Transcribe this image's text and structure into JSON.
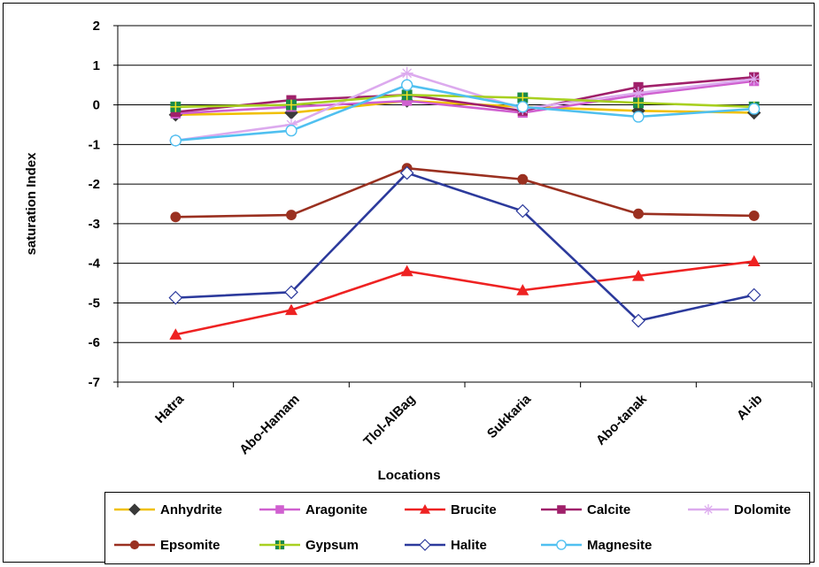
{
  "chart_data": {
    "type": "line",
    "title": "",
    "xlabel": "Locations",
    "ylabel": "saturation Index",
    "ylim": [
      -7,
      2
    ],
    "yticks": [
      "2",
      "1",
      "0",
      "-1",
      "-2",
      "-3",
      "-4",
      "-5",
      "-6",
      "-7"
    ],
    "grid": "horizontal",
    "legend_position": "bottom",
    "categories": [
      "Hatra",
      "Abo-Hamam",
      "Tlol-AlBag",
      "Sukkaria",
      "Abo-tanak",
      "Al-ib"
    ],
    "series": [
      {
        "name": "Anhydrite",
        "color": "#f0c000",
        "marker": "diamond-filled",
        "marker_color": "#3a3a3a",
        "values": [
          -0.25,
          -0.2,
          0.1,
          -0.05,
          -0.15,
          -0.2
        ]
      },
      {
        "name": "Aragonite",
        "color": "#d060d0",
        "marker": "square-filled",
        "values": [
          -0.22,
          -0.05,
          0.1,
          -0.2,
          0.25,
          0.6
        ]
      },
      {
        "name": "Brucite",
        "color": "#ee2222",
        "marker": "triangle-filled",
        "values": [
          -5.8,
          -5.18,
          -4.2,
          -4.68,
          -4.32,
          -3.95
        ]
      },
      {
        "name": "Calcite",
        "color": "#a0206a",
        "marker": "square-filled",
        "values": [
          -0.18,
          0.12,
          0.25,
          -0.15,
          0.45,
          0.7
        ]
      },
      {
        "name": "Dolomite",
        "color": "#dcaaee",
        "marker": "star",
        "values": [
          -0.9,
          -0.5,
          0.8,
          -0.1,
          0.3,
          0.65
        ]
      },
      {
        "name": "Epsomite",
        "color": "#9a3020",
        "marker": "circle-filled",
        "values": [
          -2.83,
          -2.78,
          -1.6,
          -1.88,
          -2.75,
          -2.8
        ]
      },
      {
        "name": "Gypsum",
        "color": "#a8d020",
        "marker": "square-cross",
        "marker_color": "#1a8a4a",
        "values": [
          -0.05,
          0.0,
          0.25,
          0.18,
          0.05,
          -0.05
        ]
      },
      {
        "name": "Halite",
        "color": "#2c3a9c",
        "marker": "diamond-open",
        "values": [
          -4.87,
          -4.73,
          -1.72,
          -2.68,
          -5.45,
          -4.8
        ]
      },
      {
        "name": "Magnesite",
        "color": "#50c0f0",
        "marker": "circle-open",
        "values": [
          -0.9,
          -0.65,
          0.5,
          -0.05,
          -0.3,
          -0.1
        ]
      }
    ]
  }
}
